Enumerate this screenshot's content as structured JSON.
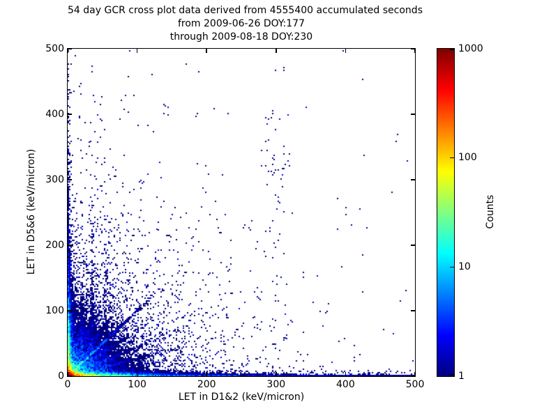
{
  "figure": {
    "title_lines": [
      "54 day GCR cross plot data derived from 4555400 accumulated seconds",
      "from 2009-06-26 DOY:177",
      "through 2009-08-18 DOY:230"
    ],
    "xlabel": "LET in D1&2 (keV/micron)",
    "ylabel": "LET in D5&6 (keV/micron)"
  },
  "chart_data": {
    "type": "heatmap",
    "title": "54 day GCR cross plot data derived from 4555400 accumulated seconds from 2009-06-26 DOY:177 through 2009-08-18 DOY:230",
    "xlabel": "LET in D1&2 (keV/micron)",
    "ylabel": "LET in D5&6 (keV/micron)",
    "xlim": [
      0,
      500
    ],
    "ylim": [
      0,
      500
    ],
    "xticks": [
      0,
      100,
      200,
      300,
      400,
      500
    ],
    "yticks": [
      0,
      100,
      200,
      300,
      400,
      500
    ],
    "grid": false,
    "background_color": "#ffffff",
    "point_color_low": "#000080",
    "colorbar": {
      "label": "Counts",
      "scale": "log",
      "min": 1,
      "max": 1000,
      "ticks": [
        1,
        10,
        100,
        1000
      ],
      "colormap": "jet",
      "gradient_stops": [
        {
          "t": 0.0,
          "color": "rgb(0,0,128)"
        },
        {
          "t": 0.125,
          "color": "rgb(0,0,255)"
        },
        {
          "t": 0.25,
          "color": "rgb(0,128,255)"
        },
        {
          "t": 0.375,
          "color": "rgb(0,255,255)"
        },
        {
          "t": 0.5,
          "color": "rgb(128,255,128)"
        },
        {
          "t": 0.625,
          "color": "rgb(255,255,0)"
        },
        {
          "t": 0.75,
          "color": "rgb(255,128,0)"
        },
        {
          "t": 0.875,
          "color": "rgb(255,0,0)"
        },
        {
          "t": 1.0,
          "color": "rgb(128,0,0)"
        }
      ]
    },
    "features": [
      "hot core (counts approaching 1000, red) at the origin below ~10 keV/micron in both detectors",
      "warm (orange-yellow-green) band hugging the x-axis out to ~70 keV/micron, fading to dark blue out to 500",
      "dense low-count band hugging the y-axis up to ~500 keV/micron",
      "cyan diagonal streak along y = x out to ~50 keV/micron with ray-like streaks fanning from the origin",
      "sparse single-count (dark navy) points scattered over the whole field",
      "loose vertical cluster of points near x = 300 between y = 150 and y = 430"
    ],
    "density_model": {
      "bin_size": 2,
      "max_count": 1500,
      "seed": 20090626,
      "terms": [
        {
          "type": "exp2",
          "a": 1200,
          "sx": 5,
          "sy": 5
        },
        {
          "type": "exp2",
          "a": 250,
          "sx": 30,
          "sy": 2.2
        },
        {
          "type": "exp2",
          "a": 10,
          "sx": 200,
          "sy": 2.0
        },
        {
          "type": "exp2",
          "a": 1.2,
          "sx": 700,
          "sy": 2.5
        },
        {
          "type": "exp2",
          "a": 120,
          "sx": 2.2,
          "sy": 40
        },
        {
          "type": "exp2",
          "a": 5,
          "sx": 2.0,
          "sy": 150
        },
        {
          "type": "exp2",
          "a": 0.5,
          "sx": 2.5,
          "sy": 400
        },
        {
          "type": "diag",
          "a": 35,
          "w": 2.0,
          "s": 22
        },
        {
          "type": "exp2",
          "a": 8,
          "sx": 35,
          "sy": 29
        },
        {
          "type": "exp2",
          "a": 2.5,
          "sx": 70,
          "sy": 70
        },
        {
          "type": "ray",
          "a": 2.5,
          "m": 0.27,
          "w": 2.5,
          "s": 55
        },
        {
          "type": "ray",
          "a": 2.5,
          "m": 0.45,
          "w": 2.5,
          "s": 60
        },
        {
          "type": "ray",
          "a": 2.2,
          "m": 0.7,
          "w": 2.5,
          "s": 60
        },
        {
          "type": "ray",
          "a": 1.2,
          "m": 1.0,
          "w": 3.0,
          "s": 90
        },
        {
          "type": "ray",
          "a": 2.2,
          "m": 1.45,
          "w": 2.5,
          "s": 55
        },
        {
          "type": "ray",
          "a": 2.2,
          "m": 2.2,
          "w": 2.5,
          "s": 50
        },
        {
          "type": "ray",
          "a": 2.0,
          "m": 3.6,
          "w": 2.5,
          "s": 45
        },
        {
          "type": "vstreak",
          "a": 1.6,
          "x0": 35,
          "w": 2.5,
          "s": 90
        },
        {
          "type": "vstreak",
          "a": 2.0,
          "x0": 20,
          "w": 2.0,
          "s": 60
        },
        {
          "type": "vstreak",
          "a": 0.8,
          "x0": 55,
          "w": 2.5,
          "s": 80
        },
        {
          "type": "const",
          "a": 0.0012
        },
        {
          "type": "exp2",
          "a": 0.03,
          "sx": 130,
          "sy": 130
        },
        {
          "type": "exp2",
          "a": 0.02,
          "sx": 60,
          "sy": 500
        },
        {
          "type": "cluster",
          "a": 0.04,
          "x0": 298,
          "y0": 300,
          "wx": 14,
          "wy": 110
        }
      ]
    }
  }
}
